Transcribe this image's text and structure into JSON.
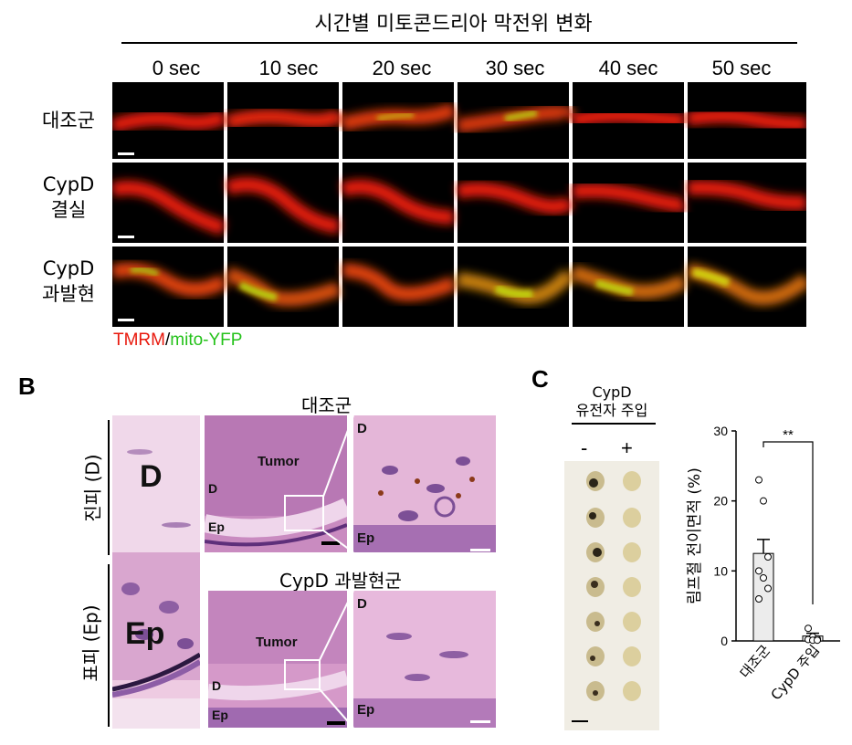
{
  "panel_a": {
    "title": "시간별 미토콘드리아 막전위 변화",
    "times": [
      "0 sec",
      "10 sec",
      "20 sec",
      "30 sec",
      "40 sec",
      "50 sec"
    ],
    "rows": [
      {
        "line1": "대조군",
        "line2": ""
      },
      {
        "line1": "CypD",
        "line2": "결실"
      },
      {
        "line1": "CypD",
        "line2": "과발현"
      }
    ],
    "legend_red": "TMRM",
    "legend_sep": "/",
    "legend_green": "mito-YFP",
    "colors": {
      "red": "#e8180c",
      "green": "#24c21a"
    }
  },
  "panel_b": {
    "letter": "B",
    "dermis_label": "진피 (D)",
    "epidermis_label": "표피 (Ep)",
    "big_d": "D",
    "big_ep": "Ep",
    "top_title": "대조군",
    "bottom_title": "CypD 과발현군",
    "tumor": "Tumor",
    "d": "D",
    "ep": "Ep"
  },
  "panel_c": {
    "letter": "C",
    "header_line1": "CypD",
    "header_line2": "유전자 주입",
    "minus": "-",
    "plus": "+",
    "chart_data": {
      "type": "bar",
      "categories": [
        "대조군",
        "CypD 주입"
      ],
      "values": [
        12.5,
        0.7
      ],
      "error": [
        2.0,
        0.4
      ],
      "points": [
        [
          23,
          20,
          12,
          10,
          9,
          7.5,
          6
        ],
        [
          1.8,
          0.6,
          0.3,
          0.2,
          0.1,
          0.1
        ]
      ],
      "ylabel": "림프절 전이면적 (%)",
      "ylim": [
        0,
        30
      ],
      "yticks": [
        "0",
        "10",
        "20",
        "30"
      ],
      "significance": "**"
    }
  }
}
